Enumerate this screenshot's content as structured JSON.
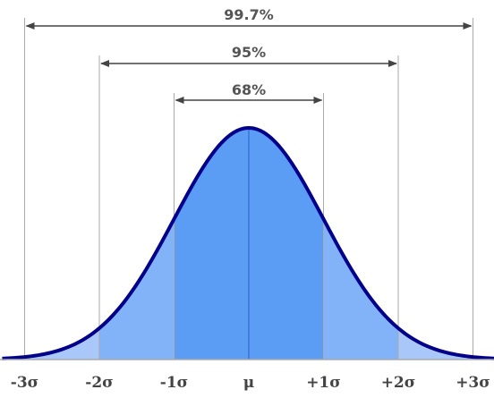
{
  "chart_data": {
    "type": "area",
    "title": "",
    "xlabel": "",
    "ylabel": "",
    "grid": false,
    "distribution": "normal",
    "x_domain": [
      -3.3,
      3.3
    ],
    "x_ticks": [
      {
        "value": -3,
        "label": "-3σ"
      },
      {
        "value": -2,
        "label": "-2σ"
      },
      {
        "value": -1,
        "label": "-1σ"
      },
      {
        "value": 0,
        "label": "μ"
      },
      {
        "value": 1,
        "label": "+1σ"
      },
      {
        "value": 2,
        "label": "+2σ"
      },
      {
        "value": 3,
        "label": "+3σ"
      }
    ],
    "bands": [
      {
        "from": -1,
        "to": 1,
        "label": "68%"
      },
      {
        "from": -2,
        "to": 2,
        "label": "95%"
      },
      {
        "from": -3,
        "to": 3,
        "label": "99.7%"
      }
    ],
    "colors": {
      "curve": "#00008b",
      "band_1sigma": "#5b9cf5",
      "band_2sigma": "#82b2f7",
      "band_3sigma": "#a9c8f9",
      "guide_lines": "#aaaaaa",
      "arrows": "#444444"
    }
  }
}
